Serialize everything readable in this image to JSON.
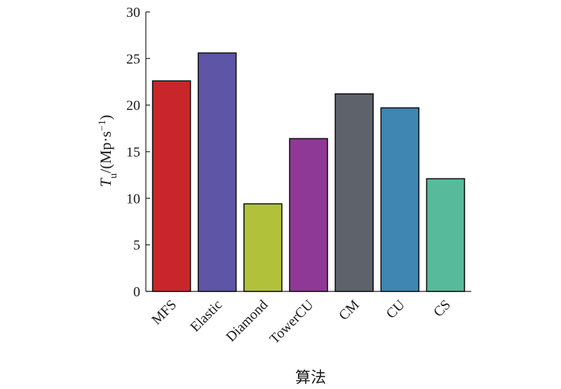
{
  "chart_data": {
    "type": "bar",
    "categories": [
      "MFS",
      "Elastic",
      "Diamond",
      "TowerCU",
      "CM",
      "CU",
      "CS"
    ],
    "values": [
      22.6,
      25.6,
      9.4,
      16.4,
      21.2,
      19.7,
      12.1
    ],
    "colors": [
      "#c9262b",
      "#5e55a6",
      "#b1c23a",
      "#8e3996",
      "#5d626b",
      "#3f86b3",
      "#57bb9b"
    ],
    "ylim": [
      0,
      30
    ],
    "yticks": [
      0,
      5,
      10,
      15,
      20,
      25,
      30
    ],
    "ylabel": {
      "main": "T",
      "subscript": "u",
      "rest": "/(Mp·s",
      "superscript": "−1",
      "close": ")"
    },
    "xlabel": "算法",
    "grid": false
  }
}
